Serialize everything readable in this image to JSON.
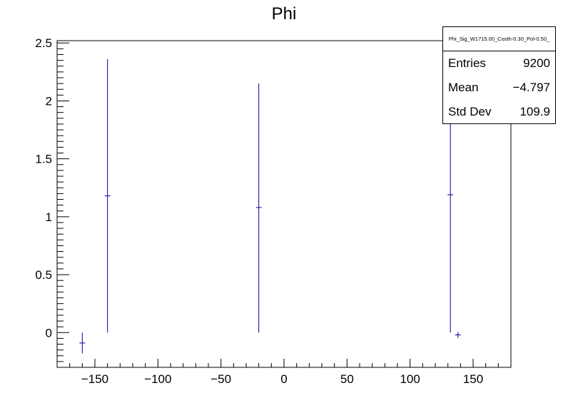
{
  "window": {
    "title": "Phi"
  },
  "stats_box": {
    "name": "Phi_Sig_W1715.00_Costh-0.30_Pol-0.50_",
    "rows": [
      {
        "label": "Entries",
        "value": "9200"
      },
      {
        "label": "Mean",
        "value": "−4.797"
      },
      {
        "label": "Std Dev",
        "value": "109.9"
      }
    ]
  },
  "chart_data": {
    "type": "scatter",
    "title": "Phi",
    "xlabel": "",
    "ylabel": "",
    "xlim": [
      -180,
      180
    ],
    "ylim": [
      -0.3,
      2.52
    ],
    "x_ticks": [
      -150,
      -100,
      -50,
      0,
      50,
      100,
      150
    ],
    "x_tick_labels": [
      "−150",
      "−100",
      "−50",
      "0",
      "50",
      "100",
      "150"
    ],
    "y_ticks": [
      0,
      0.5,
      1,
      1.5,
      2,
      2.5
    ],
    "y_tick_labels": [
      "0",
      "0.5",
      "1",
      "1.5",
      "2",
      "2.5"
    ],
    "grid": false,
    "legend": "top-right",
    "series": [
      {
        "color": "#000099",
        "points": [
          {
            "x": -160,
            "y": -0.09,
            "yerr_low": 0.09,
            "yerr_high": 0.09
          },
          {
            "x": -140,
            "y": 1.18,
            "yerr_low": 1.18,
            "yerr_high": 1.18
          },
          {
            "x": -20,
            "y": 1.08,
            "yerr_low": 1.08,
            "yerr_high": 1.07
          },
          {
            "x": 132,
            "y": 1.19,
            "yerr_low": 1.19,
            "yerr_high": 1.19
          },
          {
            "x": 138,
            "y": -0.02,
            "yerr_low": 0.0,
            "yerr_high": 0.0
          }
        ]
      }
    ]
  }
}
